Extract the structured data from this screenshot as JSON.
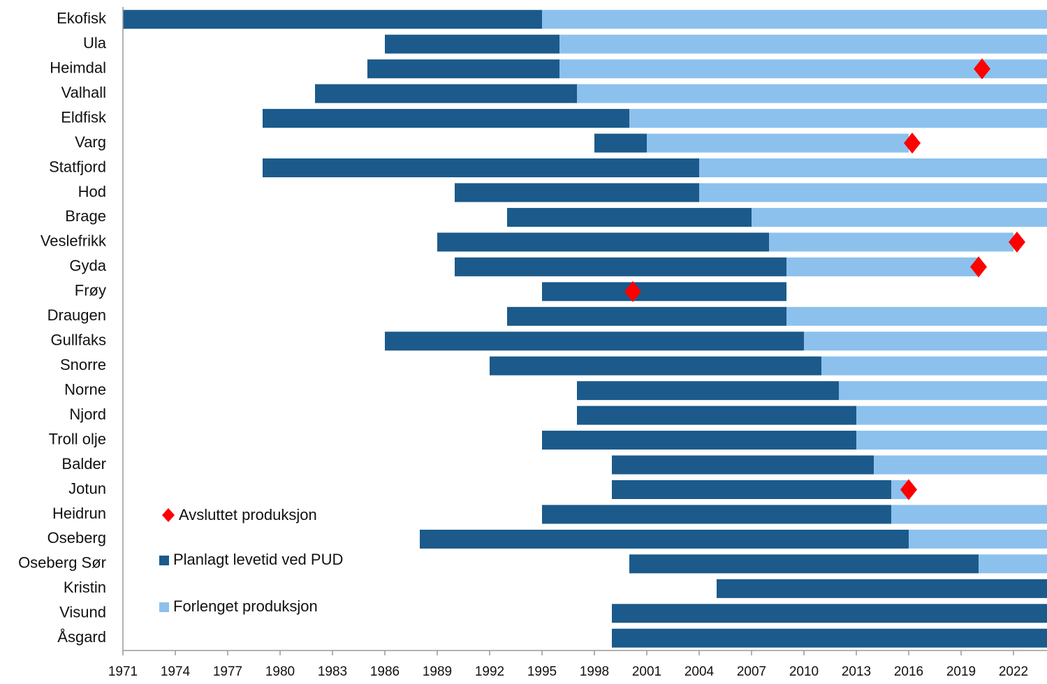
{
  "chart_data": {
    "type": "gantt",
    "categories": [
      "Ekofisk",
      "Ula",
      "Heimdal",
      "Valhall",
      "Eldfisk",
      "Varg",
      "Statfjord",
      "Hod",
      "Brage",
      "Veslefrikk",
      "Gyda",
      "Frøy",
      "Draugen",
      "Gullfaks",
      "Snorre",
      "Norne",
      "Njord",
      "Troll olje",
      "Balder",
      "Jotun",
      "Heidrun",
      "Oseberg",
      "Oseberg Sør",
      "Kristin",
      "Visund",
      "Åsgard"
    ],
    "start": [
      1971,
      1986,
      1985,
      1982,
      1979,
      1998,
      1979,
      1990,
      1993,
      1989,
      1990,
      1995,
      1993,
      1986,
      1992,
      1997,
      1997,
      1995,
      1999,
      1999,
      1995,
      1988,
      2000,
      2005,
      1999,
      1999
    ],
    "series": [
      {
        "name": "Planlagt levetid ved PUD",
        "color": "#1b5a8a",
        "values": [
          24,
          10,
          11,
          15,
          21,
          3,
          25,
          14,
          14,
          19,
          19,
          14,
          16,
          24,
          19,
          15,
          16,
          18,
          15,
          16,
          20,
          28,
          20,
          19,
          25,
          25
        ]
      },
      {
        "name": "Forlenget produksjon",
        "color": "#8cc1ee",
        "values": [
          29,
          28,
          28,
          27,
          24,
          15,
          20,
          20,
          17,
          14,
          11,
          0,
          15,
          14,
          13,
          12,
          11,
          11,
          10,
          1,
          9,
          8,
          4,
          0,
          0,
          0
        ]
      },
      {
        "name": "Avsluttet produksjon",
        "color": "#ff0000",
        "marker": "diamond",
        "values": [
          null,
          null,
          2020.2,
          null,
          null,
          2016.2,
          null,
          null,
          null,
          2022.2,
          2020,
          2000.2,
          null,
          null,
          null,
          null,
          null,
          null,
          null,
          2016,
          null,
          null,
          null,
          null,
          null,
          null
        ]
      }
    ],
    "xlim": [
      1971,
      2024
    ],
    "xticks": [
      1971,
      1974,
      1977,
      1980,
      1983,
      1986,
      1989,
      1992,
      1995,
      1998,
      2001,
      2004,
      2007,
      2010,
      2013,
      2016,
      2019,
      2022
    ]
  }
}
